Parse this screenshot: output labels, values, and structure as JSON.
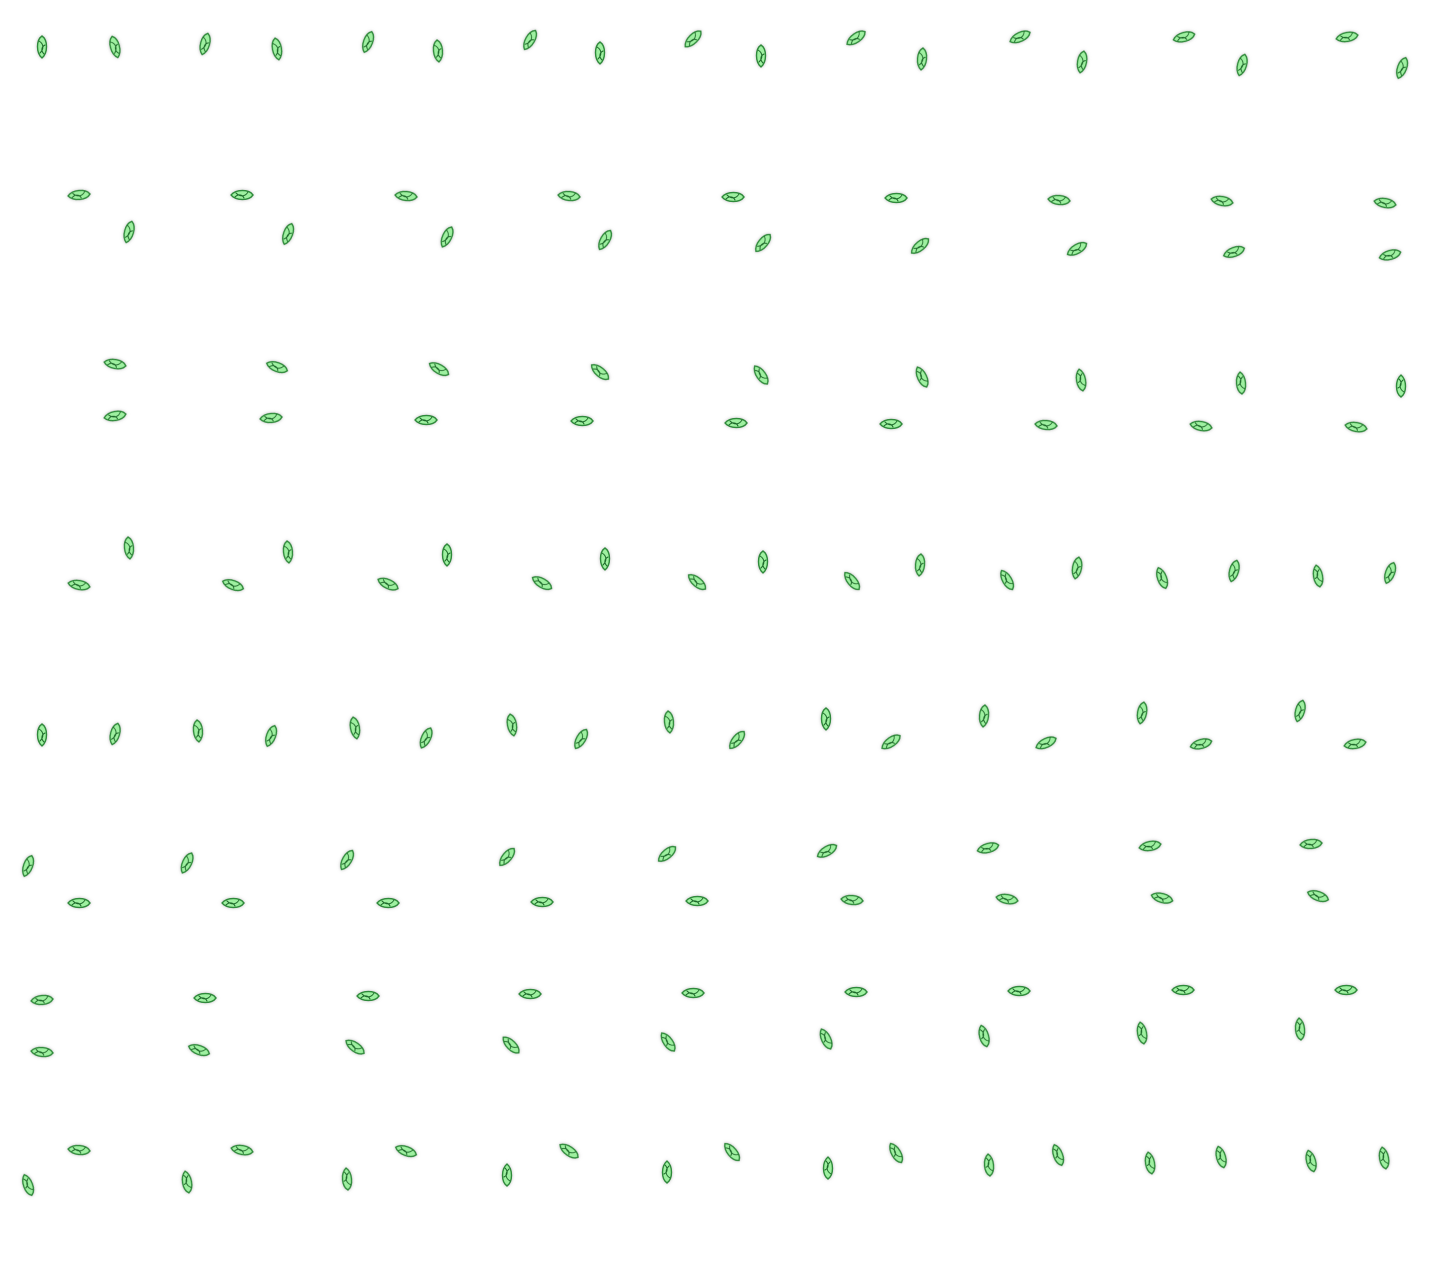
{
  "sheet": {
    "kind": "sprite-sheet",
    "background_color": "#ffffff",
    "rows": 8,
    "columns": 9,
    "frame_count": 72
  },
  "sprite": {
    "name": "leaf-pair",
    "icon": "leaf-icon",
    "fill_color": "#9ef0a0",
    "outline_color": "#2f8a3a",
    "shadow_color": "#8a8a8a",
    "vein_color": "#1f6b2a"
  }
}
